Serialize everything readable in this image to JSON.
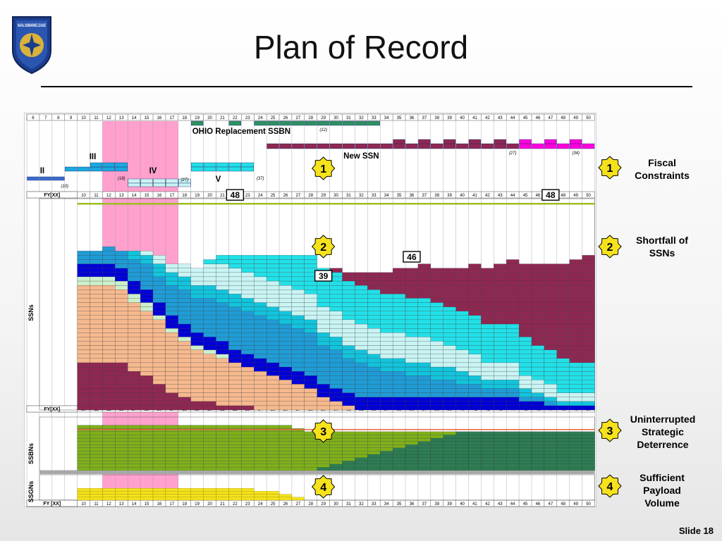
{
  "slide": {
    "title": "Plan of Record",
    "logo_text": "NAVAL SUBMARINE LEAGUE",
    "slide_number": "Slide 18"
  },
  "callouts": [
    {
      "number": "1",
      "lines": [
        "Fiscal",
        "Constraints"
      ]
    },
    {
      "number": "2",
      "lines": [
        "Shortfall of",
        "SSNs"
      ]
    },
    {
      "number": "3",
      "lines": [
        "Uninterrupted",
        "Strategic",
        "Deterrence"
      ]
    },
    {
      "number": "4",
      "lines": [
        "Sufficient",
        "Payload",
        "Volume"
      ]
    }
  ],
  "colors": {
    "la_flight_i": "#8e2852",
    "la_flight_ii": "#f6b98e",
    "la_flight_iii": "#ccf0cc",
    "seawolf": "#0000d6",
    "virginia_ii": "#1f9cd6",
    "virginia_iii": "#12c4dc",
    "virginia_iv": "#c9f4f4",
    "virginia_v": "#22e0e8",
    "new_ssn": "#8e2852",
    "new_ssn_late": "#ff00dd",
    "ohio": "#2d9162",
    "ssbn_old": "#7fb019",
    "ssbn_new": "#2e7d52",
    "ssgn": "#f5e21c",
    "highlight": "#ff96c8",
    "requirement_line": "#9dbd22",
    "ssbn_line": "#e8663a",
    "callout_star": "#f5e21c"
  },
  "chart_data": {
    "type": "area",
    "x_labels": [
      "6",
      "7",
      "8",
      "9",
      "10",
      "11",
      "12",
      "13",
      "14",
      "15",
      "16",
      "17",
      "18",
      "19",
      "20",
      "21",
      "22",
      "23",
      "24",
      "25",
      "26",
      "27",
      "28",
      "29",
      "30",
      "31",
      "32",
      "33",
      "34",
      "35",
      "36",
      "37",
      "38",
      "39",
      "40",
      "41",
      "42",
      "43",
      "44",
      "45",
      "46",
      "47",
      "48",
      "49",
      "50"
    ],
    "axis_label": "FY[XX]",
    "axis_label_bottom": "FY [XX]",
    "highlight_years": [
      "12",
      "17"
    ],
    "procurement": {
      "ohio_label": "OHIO Replacement SSBN",
      "ohio_count": "(12)",
      "new_ssn_label": "New SSN",
      "new_ssn_counts": [
        "(27)",
        "(34)"
      ],
      "virginia_blocks": [
        {
          "label": "II",
          "count": "(10)"
        },
        {
          "label": "III",
          "count": ""
        },
        {
          "label": "IV",
          "count": "(18)"
        },
        {
          "label": "V",
          "count": "(27)"
        },
        {
          "label": "",
          "count": "(37)"
        }
      ]
    },
    "ssn": {
      "ylabel": "SSNs",
      "requirement": 48,
      "annotations": [
        "48",
        "39",
        "46",
        "48"
      ],
      "stack_order": [
        "la_flight_i",
        "la_flight_ii",
        "la_flight_iii",
        "seawolf",
        "virginia_ii",
        "virginia_iii",
        "virginia_iv",
        "virginia_v",
        "new_ssn"
      ],
      "years": [
        10,
        11,
        12,
        13,
        14,
        15,
        16,
        17,
        18,
        19,
        20,
        21,
        22,
        23,
        24,
        25,
        26,
        27,
        28,
        29,
        30,
        31,
        32,
        33,
        34,
        35,
        36,
        37,
        38,
        39,
        40,
        41,
        42,
        43,
        44,
        45,
        46,
        47,
        48,
        49,
        50
      ],
      "la_flight_i": [
        11,
        11,
        11,
        11,
        9,
        8,
        6,
        4,
        3,
        2,
        2,
        1,
        1,
        1,
        0,
        0,
        0,
        0,
        0,
        0,
        0,
        0,
        0,
        0,
        0,
        0,
        0,
        0,
        0,
        0,
        0,
        0,
        0,
        0,
        0,
        0,
        0,
        0,
        0,
        0,
        0
      ],
      "la_flight_ii": [
        18,
        18,
        18,
        17,
        16,
        15,
        15,
        14,
        13,
        12,
        11,
        11,
        10,
        9,
        9,
        8,
        7,
        6,
        5,
        3,
        2,
        1,
        0,
        0,
        0,
        0,
        0,
        0,
        0,
        0,
        0,
        0,
        0,
        0,
        0,
        0,
        0,
        0,
        0,
        0,
        0
      ],
      "la_flight_iii": [
        2,
        2,
        2,
        2,
        2,
        2,
        1,
        1,
        1,
        1,
        1,
        1,
        0,
        0,
        0,
        0,
        0,
        0,
        0,
        0,
        0,
        0,
        0,
        0,
        0,
        0,
        0,
        0,
        0,
        0,
        0,
        0,
        0,
        0,
        0,
        0,
        0,
        0,
        0,
        0,
        0
      ],
      "seawolf": [
        3,
        3,
        3,
        3,
        3,
        3,
        3,
        3,
        3,
        3,
        3,
        3,
        3,
        3,
        3,
        3,
        3,
        3,
        3,
        3,
        3,
        3,
        3,
        3,
        3,
        3,
        3,
        3,
        3,
        3,
        3,
        3,
        3,
        3,
        3,
        2,
        2,
        1,
        1,
        1,
        1
      ],
      "virginia_ii": [
        3,
        3,
        4,
        4,
        5,
        6,
        6,
        7,
        8,
        8,
        9,
        9,
        10,
        10,
        10,
        10,
        10,
        10,
        10,
        9,
        9,
        8,
        8,
        7,
        6,
        6,
        5,
        5,
        4,
        4,
        3,
        3,
        2,
        2,
        2,
        1,
        1,
        1,
        0,
        0,
        0
      ],
      "virginia_iii": [
        0,
        0,
        0,
        0,
        2,
        2,
        3,
        3,
        3,
        3,
        3,
        3,
        3,
        3,
        3,
        3,
        3,
        3,
        3,
        3,
        3,
        3,
        3,
        3,
        3,
        3,
        3,
        3,
        3,
        3,
        3,
        2,
        2,
        2,
        2,
        2,
        1,
        1,
        1,
        1,
        1
      ],
      "virginia_iv": [
        0,
        0,
        0,
        0,
        0,
        1,
        2,
        2,
        3,
        4,
        5,
        6,
        6,
        6,
        6,
        6,
        6,
        6,
        6,
        6,
        6,
        6,
        6,
        6,
        6,
        6,
        6,
        6,
        6,
        5,
        5,
        5,
        4,
        4,
        4,
        3,
        3,
        3,
        2,
        2,
        2
      ],
      "virginia_v": [
        0,
        0,
        0,
        0,
        0,
        0,
        0,
        0,
        0,
        0,
        1,
        2,
        3,
        4,
        5,
        6,
        7,
        8,
        9,
        9,
        9,
        9,
        9,
        9,
        9,
        9,
        9,
        9,
        9,
        9,
        9,
        9,
        9,
        9,
        9,
        9,
        8,
        8,
        8,
        7,
        7
      ],
      "new_ssn": [
        0,
        0,
        0,
        0,
        0,
        0,
        0,
        0,
        0,
        0,
        0,
        0,
        0,
        0,
        0,
        0,
        0,
        0,
        0,
        0,
        1,
        2,
        3,
        4,
        5,
        6,
        7,
        8,
        8,
        9,
        10,
        12,
        13,
        14,
        15,
        17,
        19,
        20,
        22,
        24,
        25
      ]
    },
    "ssbn": {
      "ylabel": "SSBNs",
      "requirement": 12,
      "years": [
        10,
        11,
        12,
        13,
        14,
        15,
        16,
        17,
        18,
        19,
        20,
        21,
        22,
        23,
        24,
        25,
        26,
        27,
        28,
        29,
        30,
        31,
        32,
        33,
        34,
        35,
        36,
        37,
        38,
        39,
        40,
        41,
        42,
        43,
        44,
        45,
        46,
        47,
        48,
        49,
        50
      ],
      "ohio_old": [
        14,
        14,
        14,
        14,
        14,
        14,
        14,
        14,
        14,
        14,
        14,
        14,
        14,
        14,
        14,
        14,
        14,
        13,
        12,
        11,
        10,
        9,
        8,
        7,
        6,
        5,
        4,
        3,
        2,
        1,
        0,
        0,
        0,
        0,
        0,
        0,
        0,
        0,
        0,
        0,
        0
      ],
      "ohio_new": [
        0,
        0,
        0,
        0,
        0,
        0,
        0,
        0,
        0,
        0,
        0,
        0,
        0,
        0,
        0,
        0,
        0,
        0,
        0,
        1,
        2,
        3,
        4,
        5,
        6,
        7,
        8,
        9,
        10,
        11,
        12,
        12,
        12,
        12,
        12,
        12,
        12,
        12,
        12,
        12,
        12
      ]
    },
    "ssgn": {
      "ylabel": "SSGNs",
      "years": [
        10,
        11,
        12,
        13,
        14,
        15,
        16,
        17,
        18,
        19,
        20,
        21,
        22,
        23,
        24,
        25,
        26,
        27,
        28,
        29,
        30,
        31,
        32,
        33,
        34,
        35,
        36,
        37,
        38,
        39,
        40,
        41,
        42,
        43,
        44,
        45,
        46,
        47,
        48,
        49,
        50
      ],
      "count": [
        4,
        4,
        4,
        4,
        4,
        4,
        4,
        4,
        4,
        4,
        4,
        4,
        4,
        4,
        3,
        3,
        2,
        1,
        0,
        0,
        0,
        0,
        0,
        0,
        0,
        0,
        0,
        0,
        0,
        0,
        0,
        0,
        0,
        0,
        0,
        0,
        0,
        0,
        0,
        0,
        0
      ]
    }
  }
}
